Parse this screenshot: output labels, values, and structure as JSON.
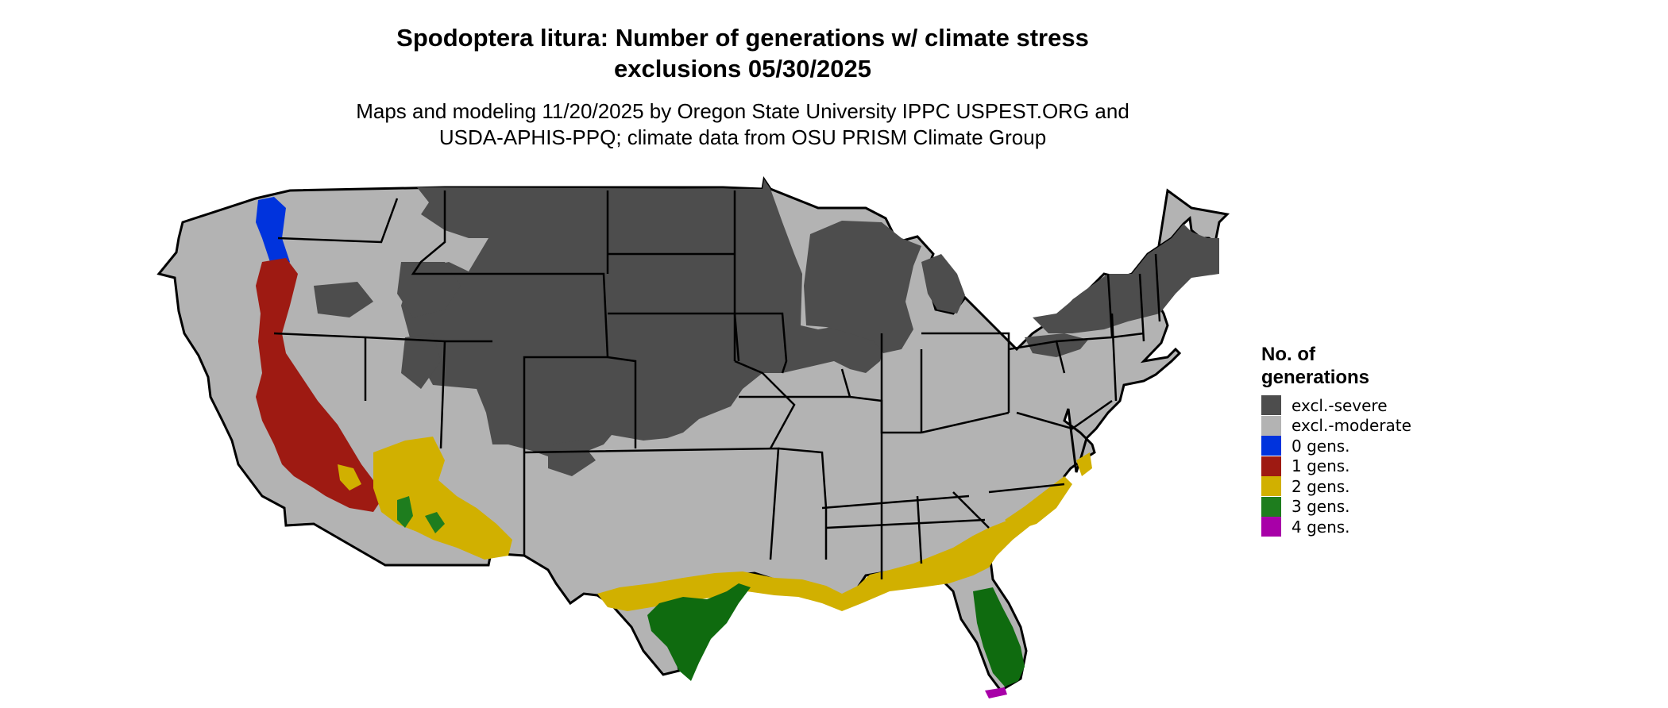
{
  "title_line1": "Spodoptera litura: Number of generations w/ climate stress",
  "title_line2": "exclusions 05/30/2025",
  "subtitle_line1": "Maps and modeling 11/20/2025 by Oregon State University IPPC USPEST.ORG and",
  "subtitle_line2": "USDA-APHIS-PPQ; climate data from OSU PRISM Climate Group",
  "legend": {
    "title_line1": "No. of",
    "title_line2": "generations",
    "items": [
      {
        "label": "excl.-severe",
        "color": "#4d4d4d"
      },
      {
        "label": "excl.-moderate",
        "color": "#b3b3b3"
      },
      {
        "label": "0 gens.",
        "color": "#0033dd"
      },
      {
        "label": "1 gens.",
        "color": "#9e1a12"
      },
      {
        "label": "2 gens.",
        "color": "#d1b000"
      },
      {
        "label": "3 gens.",
        "color": "#1e7d1e"
      },
      {
        "label": "4 gens.",
        "color": "#a800a8"
      }
    ]
  }
}
